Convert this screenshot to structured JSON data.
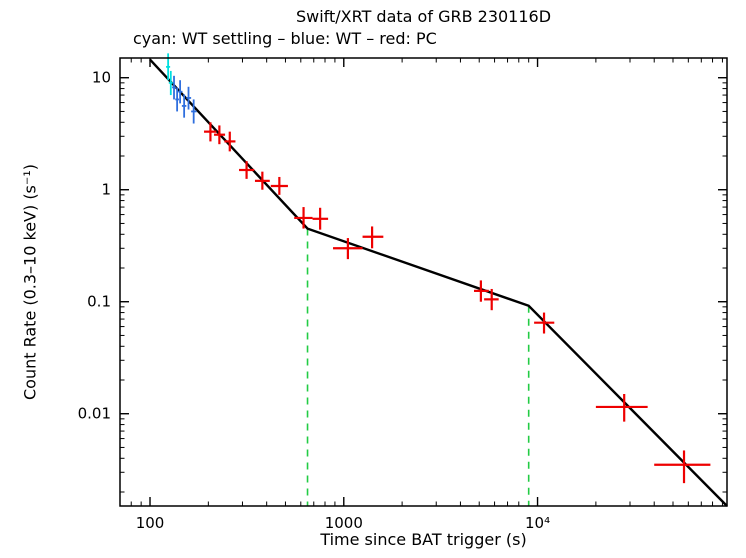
{
  "chart_data": {
    "type": "scatter",
    "title": "Swift/XRT data of GRB 230116D",
    "subtitle": "cyan: WT settling – blue: WT – red: PC",
    "xlabel": "Time since BAT trigger (s)",
    "ylabel": "Count Rate (0.3–10 keV) (s⁻¹)",
    "xscale": "log",
    "yscale": "log",
    "xlim": [
      70,
      95000
    ],
    "ylim": [
      0.0015,
      15
    ],
    "grid": false,
    "xticks": [
      {
        "value": 100,
        "label": "100"
      },
      {
        "value": 1000,
        "label": "1000"
      },
      {
        "value": 10000,
        "label": "10⁴"
      }
    ],
    "yticks": [
      {
        "value": 10,
        "label": "10"
      },
      {
        "value": 1,
        "label": "1"
      },
      {
        "value": 0.1,
        "label": "0.1"
      },
      {
        "value": 0.01,
        "label": "0.01"
      }
    ],
    "series": [
      {
        "name": "WT settling",
        "color": "#00dede",
        "width": 1.8,
        "points": [
          {
            "x": 124,
            "xlo": 121,
            "xhi": 127,
            "y": 12.5,
            "ylo": 9.5,
            "yhi": 16.5
          },
          {
            "x": 128,
            "xlo": 125,
            "xhi": 131,
            "y": 9.0,
            "ylo": 7.0,
            "yhi": 11.5
          }
        ]
      },
      {
        "name": "WT",
        "color": "#2f6fde",
        "width": 1.8,
        "points": [
          {
            "x": 133,
            "xlo": 130,
            "xhi": 136,
            "y": 8.2,
            "ylo": 6.4,
            "yhi": 10.4
          },
          {
            "x": 138,
            "xlo": 135,
            "xhi": 141,
            "y": 6.4,
            "ylo": 5.0,
            "yhi": 8.2
          },
          {
            "x": 143,
            "xlo": 140,
            "xhi": 147,
            "y": 7.5,
            "ylo": 5.9,
            "yhi": 9.5
          },
          {
            "x": 150,
            "xlo": 146,
            "xhi": 154,
            "y": 5.6,
            "ylo": 4.4,
            "yhi": 7.1
          },
          {
            "x": 158,
            "xlo": 154,
            "xhi": 163,
            "y": 6.6,
            "ylo": 5.2,
            "yhi": 8.3
          },
          {
            "x": 168,
            "xlo": 163,
            "xhi": 174,
            "y": 5.0,
            "ylo": 3.9,
            "yhi": 6.4
          }
        ]
      },
      {
        "name": "PC",
        "color": "#ee0000",
        "width": 2.2,
        "points": [
          {
            "x": 205,
            "xlo": 190,
            "xhi": 220,
            "y": 3.3,
            "ylo": 2.7,
            "yhi": 4.0
          },
          {
            "x": 228,
            "xlo": 214,
            "xhi": 244,
            "y": 3.1,
            "ylo": 2.55,
            "yhi": 3.75
          },
          {
            "x": 258,
            "xlo": 242,
            "xhi": 276,
            "y": 2.7,
            "ylo": 2.2,
            "yhi": 3.3
          },
          {
            "x": 315,
            "xlo": 288,
            "xhi": 345,
            "y": 1.5,
            "ylo": 1.25,
            "yhi": 1.8
          },
          {
            "x": 380,
            "xlo": 348,
            "xhi": 415,
            "y": 1.2,
            "ylo": 1.0,
            "yhi": 1.45
          },
          {
            "x": 465,
            "xlo": 420,
            "xhi": 515,
            "y": 1.08,
            "ylo": 0.9,
            "yhi": 1.3
          },
          {
            "x": 620,
            "xlo": 555,
            "xhi": 690,
            "y": 0.56,
            "ylo": 0.45,
            "yhi": 0.7
          },
          {
            "x": 755,
            "xlo": 690,
            "xhi": 830,
            "y": 0.55,
            "ylo": 0.44,
            "yhi": 0.69
          },
          {
            "x": 1050,
            "xlo": 880,
            "xhi": 1250,
            "y": 0.3,
            "ylo": 0.24,
            "yhi": 0.37
          },
          {
            "x": 1400,
            "xlo": 1250,
            "xhi": 1600,
            "y": 0.38,
            "ylo": 0.3,
            "yhi": 0.47
          },
          {
            "x": 5100,
            "xlo": 4700,
            "xhi": 5600,
            "y": 0.125,
            "ylo": 0.1,
            "yhi": 0.155
          },
          {
            "x": 5800,
            "xlo": 5300,
            "xhi": 6300,
            "y": 0.105,
            "ylo": 0.084,
            "yhi": 0.13
          },
          {
            "x": 10800,
            "xlo": 9600,
            "xhi": 12200,
            "y": 0.065,
            "ylo": 0.052,
            "yhi": 0.08
          },
          {
            "x": 28000,
            "xlo": 20000,
            "xhi": 37000,
            "y": 0.0115,
            "ylo": 0.0085,
            "yhi": 0.015
          },
          {
            "x": 57000,
            "xlo": 40000,
            "xhi": 78000,
            "y": 0.0035,
            "ylo": 0.0024,
            "yhi": 0.0047
          }
        ]
      }
    ],
    "fit_line": {
      "color": "#000000",
      "points": [
        [
          100,
          14.5
        ],
        [
          650,
          0.45
        ],
        [
          9000,
          0.092
        ],
        [
          95000,
          0.0015
        ]
      ]
    },
    "break_lines": [
      {
        "x": 650,
        "top": 0.45
      },
      {
        "x": 9000,
        "top": 0.092
      }
    ],
    "break_line_color": "#22cc44"
  }
}
